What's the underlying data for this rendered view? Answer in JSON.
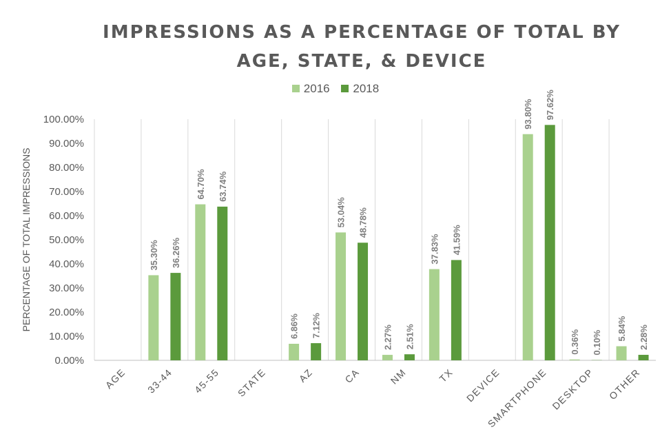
{
  "chart_data": {
    "type": "bar",
    "title": [
      "IMPRESSIONS AS A PERCENTAGE OF TOTAL BY",
      "AGE, STATE, & DEVICE"
    ],
    "ylabel": "PERCENTAGE OF TOTAL IMPRESSIONS",
    "xlabel": "",
    "ylim": [
      0,
      100
    ],
    "yticks": [
      "0.00%",
      "10.00%",
      "20.00%",
      "30.00%",
      "40.00%",
      "50.00%",
      "60.00%",
      "70.00%",
      "80.00%",
      "90.00%",
      "100.00%"
    ],
    "grid": "vertical category separators",
    "legend_position": "top-center",
    "categories": [
      "AGE",
      "33-44",
      "45-55",
      "STATE",
      "AZ",
      "CA",
      "NM",
      "TX",
      "DEVICE",
      "SMARTPHONE",
      "DESKTOP",
      "OTHER"
    ],
    "series": [
      {
        "name": "2016",
        "color": "#a9d18e",
        "values": [
          null,
          35.3,
          64.7,
          null,
          6.86,
          53.04,
          2.27,
          37.83,
          null,
          93.8,
          0.36,
          5.84
        ],
        "labels": [
          "",
          "35.30%",
          "64.70%",
          "",
          "6.86%",
          "53.04%",
          "2.27%",
          "37.83%",
          "",
          "93.80%",
          "0.36%",
          "5.84%"
        ]
      },
      {
        "name": "2018",
        "color": "#5b9a3c",
        "values": [
          null,
          36.26,
          63.74,
          null,
          7.12,
          48.78,
          2.51,
          41.59,
          null,
          97.62,
          0.1,
          2.28
        ],
        "labels": [
          "",
          "36.26%",
          "63.74%",
          "",
          "7.12%",
          "48.78%",
          "2.51%",
          "41.59%",
          "",
          "97.62%",
          "0.10%",
          "2.28%"
        ]
      }
    ]
  },
  "colors": {
    "text": "#595959",
    "label": "#7f7f7f",
    "grid": "#d9d9d9",
    "axis": "#bfbfbf"
  }
}
